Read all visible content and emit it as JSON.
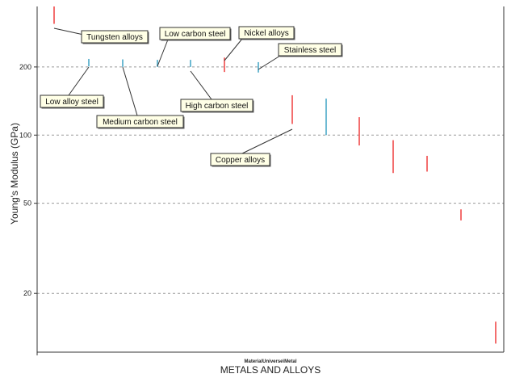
{
  "chart_data": {
    "type": "range",
    "title": "",
    "xlabel_small": "MaterialUniverse\\Metal",
    "xlabel": "METALS AND ALLOYS",
    "ylabel": "Young's Modulus (GPa)",
    "yscale": "log",
    "ylim": [
      11,
      370
    ],
    "yticks": [
      20,
      50,
      100,
      200
    ],
    "grid": "dashed-horizontal",
    "colors": {
      "ferrous": "#4aa8c8",
      "nonferrous": "#f04a4a"
    },
    "ranges": [
      {
        "label": "Tungsten alloys",
        "low": 310,
        "high": 370,
        "color": "#f04a4a"
      },
      {
        "label": "Low alloy steel",
        "low": 201,
        "high": 217,
        "color": "#4aa8c8"
      },
      {
        "label": "Medium carbon steel",
        "low": 200,
        "high": 216,
        "color": "#4aa8c8"
      },
      {
        "label": "Low carbon steel",
        "low": 200,
        "high": 215,
        "color": "#4aa8c8"
      },
      {
        "label": "High carbon steel",
        "low": 200,
        "high": 215,
        "color": "#4aa8c8"
      },
      {
        "label": "Nickel alloys",
        "low": 190,
        "high": 220,
        "color": "#f04a4a"
      },
      {
        "label": "Stainless steel",
        "low": 189,
        "high": 210,
        "color": "#4aa8c8"
      },
      {
        "label": "Copper alloys",
        "low": 112,
        "high": 150,
        "color": "#f04a4a"
      },
      {
        "label": "",
        "low": 100,
        "high": 145,
        "color": "#4aa8c8"
      },
      {
        "label": "",
        "low": 90,
        "high": 120,
        "color": "#f04a4a"
      },
      {
        "label": "",
        "low": 68,
        "high": 95,
        "color": "#f04a4a"
      },
      {
        "label": "",
        "low": 69,
        "high": 81,
        "color": "#f04a4a"
      },
      {
        "label": "",
        "low": 42,
        "high": 47,
        "color": "#f04a4a"
      },
      {
        "label": "",
        "low": 12,
        "high": 15,
        "color": "#f04a4a"
      }
    ]
  }
}
